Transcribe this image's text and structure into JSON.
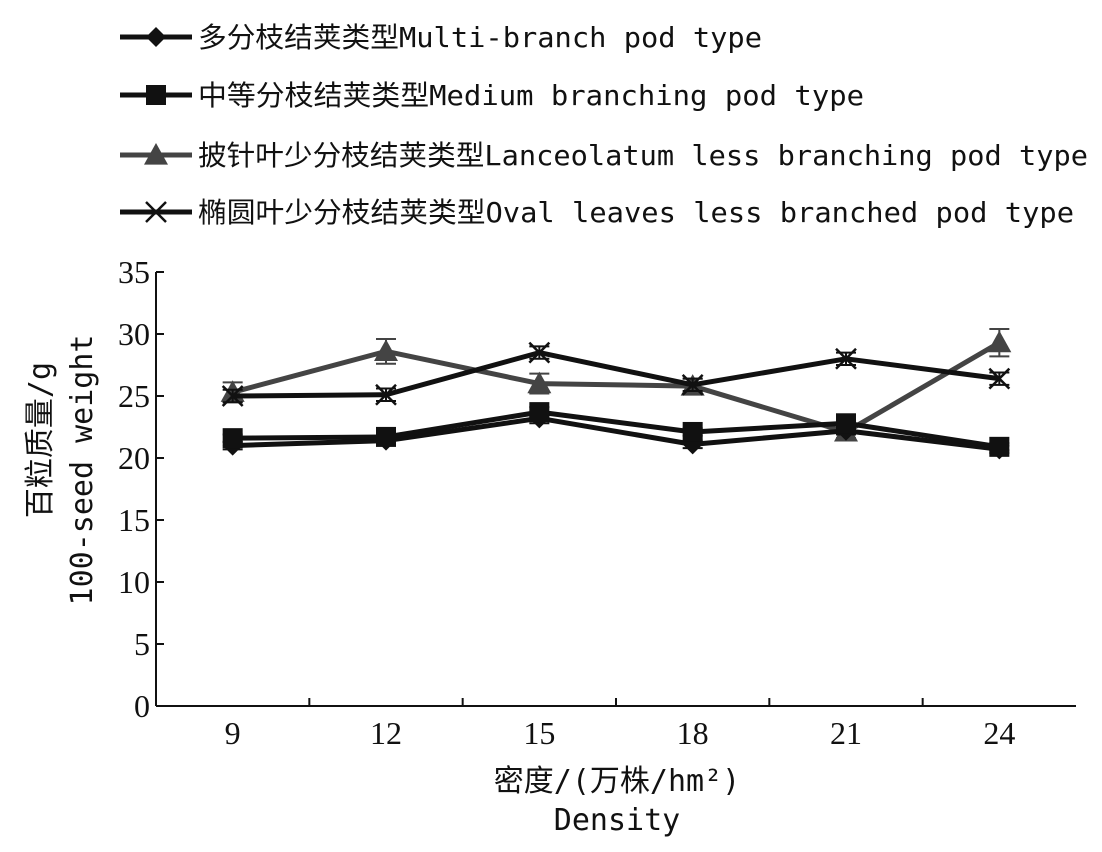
{
  "chart_data": {
    "type": "line",
    "x": [
      9,
      12,
      15,
      18,
      21,
      24
    ],
    "xtick_labels": [
      "9",
      "12",
      "15",
      "18",
      "21",
      "24"
    ],
    "ytick_labels": [
      "0",
      "5",
      "10",
      "15",
      "20",
      "25",
      "30",
      "35"
    ],
    "ylim": [
      0,
      35
    ],
    "xlabel": "密度/(万株/hm²)",
    "xlabel_en": "Density",
    "ylabel": "百粒质量/g",
    "ylabel_en": "100-seed weight",
    "legend_position": "top",
    "grid": false,
    "series": [
      {
        "name": "多分枝结荚类型Multi-branch pod type",
        "marker": "diamond",
        "color": "#111111",
        "values": [
          21.0,
          21.4,
          23.2,
          21.1,
          22.2,
          20.7
        ],
        "errors": [
          0.3,
          0.3,
          0.4,
          0.3,
          0.3,
          0.3
        ]
      },
      {
        "name": "中等分枝结荚类型Medium branching pod type",
        "marker": "square",
        "color": "#111111",
        "values": [
          21.6,
          21.7,
          23.7,
          22.1,
          22.8,
          20.9
        ],
        "errors": [
          0.3,
          0.3,
          0.4,
          0.3,
          0.4,
          0.3
        ]
      },
      {
        "name": "披针叶少分枝结荚类型Lanceolatum less branching pod type",
        "marker": "triangle",
        "color": "#444444",
        "values": [
          25.3,
          28.6,
          26.0,
          25.8,
          22.1,
          29.3
        ],
        "errors": [
          0.8,
          1.0,
          0.8,
          0.6,
          0.5,
          1.1
        ]
      },
      {
        "name": "椭圆叶少分枝结荚类型Oval leaves less branched pod type",
        "marker": "x",
        "color": "#111111",
        "values": [
          25.0,
          25.1,
          28.5,
          25.9,
          28.0,
          26.4
        ],
        "errors": [
          0.5,
          0.5,
          0.5,
          0.5,
          0.5,
          0.5
        ]
      }
    ]
  }
}
